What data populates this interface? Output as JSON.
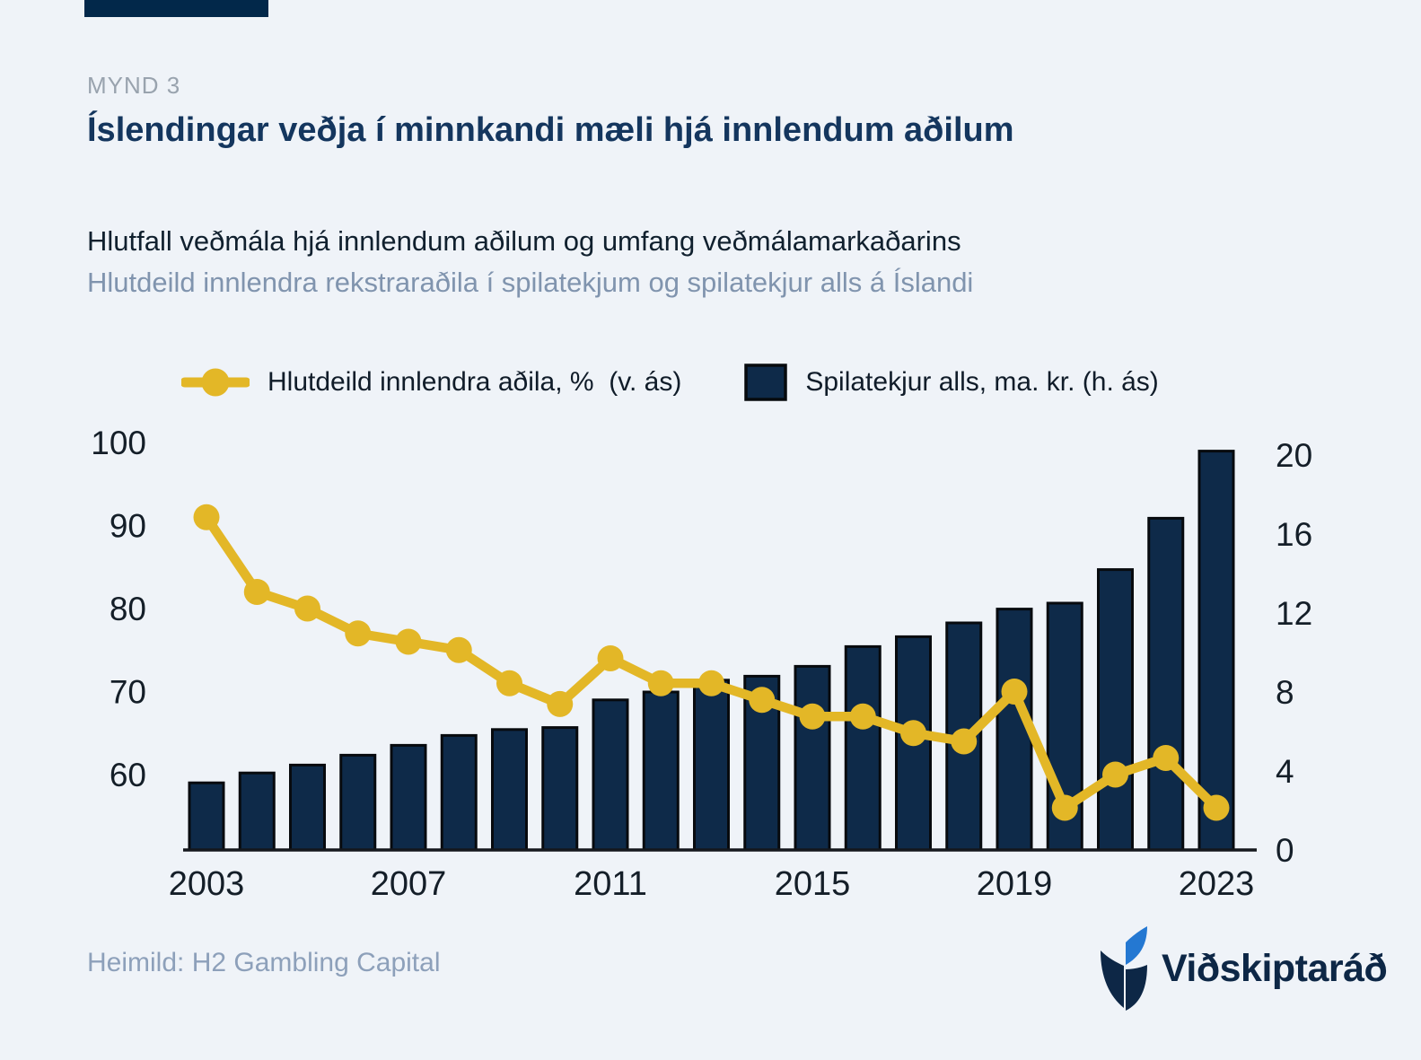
{
  "page": {
    "background_color": "#eff3f8",
    "accent_bar_color": "#02284a"
  },
  "header": {
    "kicker": "MYND 3",
    "title": "Íslendingar veðja í minnkandi mæli hjá innlendum aðilum",
    "subtitle_primary": "Hlutfall veðmála hjá innlendum aðilum og umfang veðmálamarkaðarins",
    "subtitle_secondary": "Hlutdeild innlendra rekstraraðila í spilatekjum og spilatekjur alls á Íslandi"
  },
  "legend": {
    "items": [
      {
        "marker": "line-dot",
        "label": "Hlutdeild innlendra aðila, %  (v. ás)",
        "color": "#e3b727"
      },
      {
        "marker": "square",
        "label": "Spilatekjur alls, ma. kr. (h. ás)",
        "color": "#0e2a49"
      }
    ]
  },
  "footer": {
    "source": "Heimild: H2 Gambling Capital",
    "logo_text": "Viðskiptaráð",
    "logo_navy": "#0d2746",
    "logo_blue": "#2478d2"
  },
  "chart_data": {
    "type": "combo (bar + line, dual axis)",
    "years": [
      2003,
      2004,
      2005,
      2006,
      2007,
      2008,
      2009,
      2010,
      2011,
      2012,
      2013,
      2014,
      2015,
      2016,
      2017,
      2018,
      2019,
      2020,
      2021,
      2022,
      2023
    ],
    "series": [
      {
        "name": "Hlutdeild innlendra aðila, % (v. ás)",
        "type": "line",
        "axis": "left",
        "color": "#e3b727",
        "values": [
          91,
          82,
          80,
          77,
          76,
          75,
          71,
          68.5,
          74,
          71,
          71,
          69,
          67,
          67,
          65,
          64,
          70,
          56,
          60,
          62,
          56
        ]
      },
      {
        "name": "Spilatekjur alls, ma. kr. (h. ás)",
        "type": "bar",
        "axis": "right",
        "color": "#0e2a49",
        "values": [
          3.4,
          3.9,
          4.3,
          4.8,
          5.3,
          5.8,
          6.1,
          6.2,
          7.6,
          8.0,
          8.6,
          8.8,
          9.3,
          10.3,
          10.8,
          11.5,
          12.2,
          12.5,
          14.2,
          16.8,
          20.2
        ]
      }
    ],
    "left_axis": {
      "ticks": [
        60,
        70,
        80,
        90,
        100
      ],
      "unit": "%",
      "range": [
        51,
        100
      ]
    },
    "right_axis": {
      "ticks": [
        0,
        4,
        8,
        12,
        16,
        20
      ],
      "unit": "ma. kr.",
      "range": [
        0,
        20
      ]
    },
    "x_axis": {
      "tick_labels": [
        "2003",
        "2007",
        "2011",
        "2015",
        "2019",
        "2023"
      ]
    },
    "grid": "off",
    "legend_position": "top",
    "bar_stroke": "#070a0e",
    "axis_color": "#15181d",
    "text_color": "#141e28"
  }
}
